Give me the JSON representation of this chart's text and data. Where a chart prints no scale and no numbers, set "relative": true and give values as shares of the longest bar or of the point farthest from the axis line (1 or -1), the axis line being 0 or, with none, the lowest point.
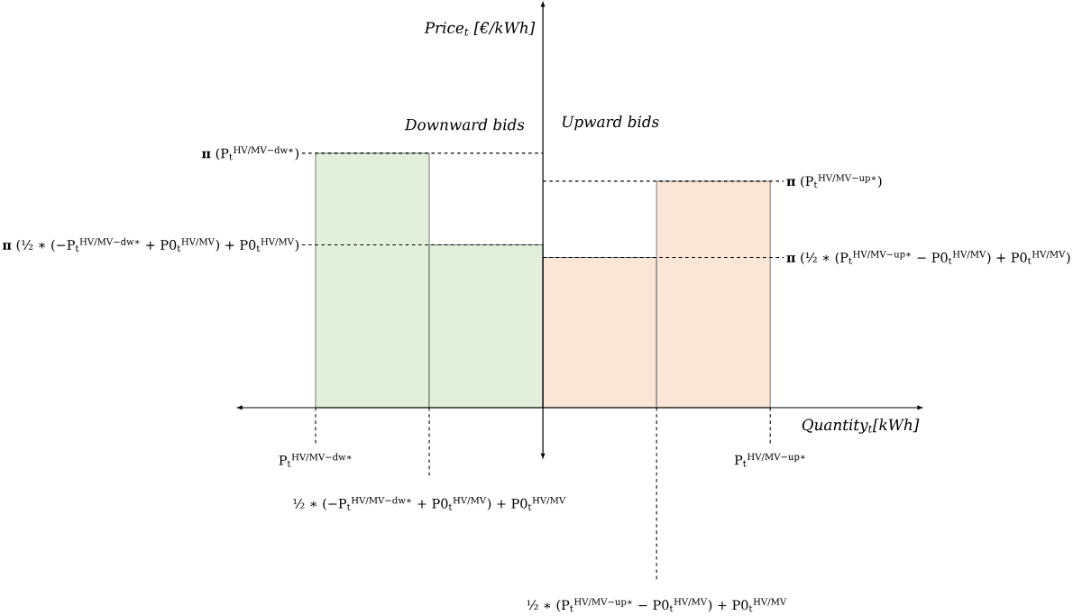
{
  "chart_data": {
    "type": "bar",
    "relative": true,
    "xlabel": "Quantity$_{t}$[kWh]",
    "categories": [
      null,
      null,
      null,
      null
    ],
    "values": [
      1.0,
      0.64,
      0.59,
      0.89
    ],
    "colors": [
      "#e2efda",
      "#e2efda",
      "#fbe5d6",
      "#fbe5d6"
    ],
    "ref_lines": [
      {
        "axis": "y",
        "value": 1.0,
        "label": "**π** (P$_{t}$$^{HV/MV−dw∗}$)",
        "line_style": "dashed",
        "color": "#000000"
      },
      {
        "axis": "y",
        "value": 0.64,
        "label": "**π** (½ ∗ (−P$_{t}$$^{HV/MV−dw∗}$ + P0$_{t}$$^{HV/MV}$) + P0$_{t}$$^{HV/MV}$)",
        "line_style": "dashed",
        "color": "#000000"
      },
      {
        "axis": "y",
        "value": 0.89,
        "label": "**π** (P$_{t}$$^{HV/MV−up∗}$)",
        "line_style": "dashed",
        "color": "#000000"
      },
      {
        "axis": "y",
        "value": 0.59,
        "label": "**π** (½ ∗ (P$_{t}$$^{HV/MV−up∗}$ − P0$_{t}$$^{HV/MV}$) + P0$_{t}$$^{HV/MV}$)",
        "line_style": "dashed",
        "color": "#000000"
      }
    ],
    "annotations": [
      "Downward bids",
      "Upward bids",
      "P$_{t}$$^{HV/MV−dw∗}$",
      "½ ∗ (−P$_{t}$$^{HV/MV−dw∗}$ + P0$_{t}$$^{HV/MV}$) + P0$_{t}$$^{HV/MV}$",
      "½ ∗ (P$_{t}$$^{HV/MV−up∗}$ − P0$_{t}$$^{HV/MV}$) + P0$_{t}$$^{HV/MV}$",
      "P$_{t}$$^{HV/MV−up∗}$",
      "Price$_{t}$ [€/kWh]"
    ]
  }
}
